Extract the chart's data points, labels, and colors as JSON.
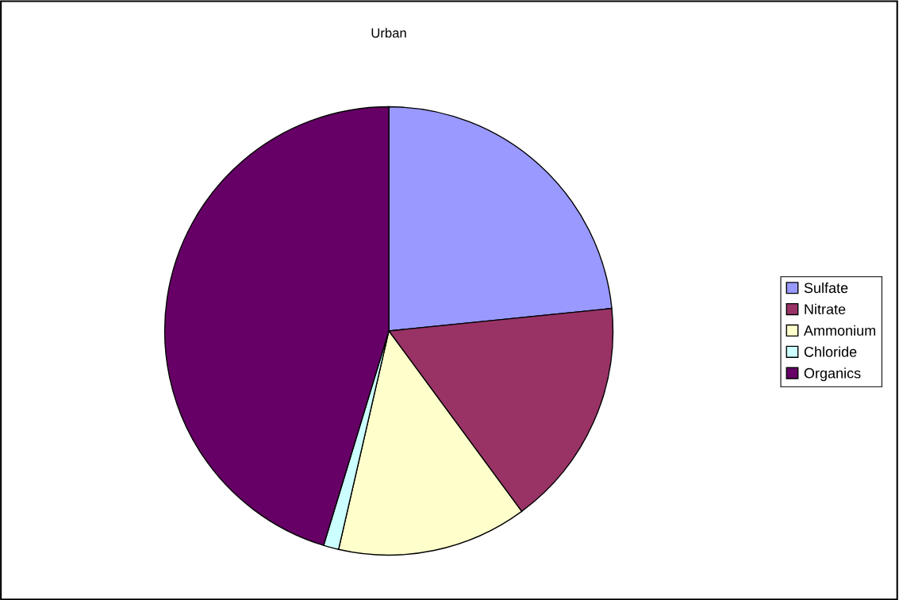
{
  "chart_data": {
    "type": "pie",
    "title": "Urban",
    "categories": [
      "Sulfate",
      "Nitrate",
      "Ammonium",
      "Chloride",
      "Organics"
    ],
    "values": [
      23.4,
      16.5,
      13.7,
      1.1,
      45.3
    ],
    "colors": [
      "#9999ff",
      "#993366",
      "#ffffcc",
      "#ccffff",
      "#660066"
    ],
    "legend": "right"
  }
}
